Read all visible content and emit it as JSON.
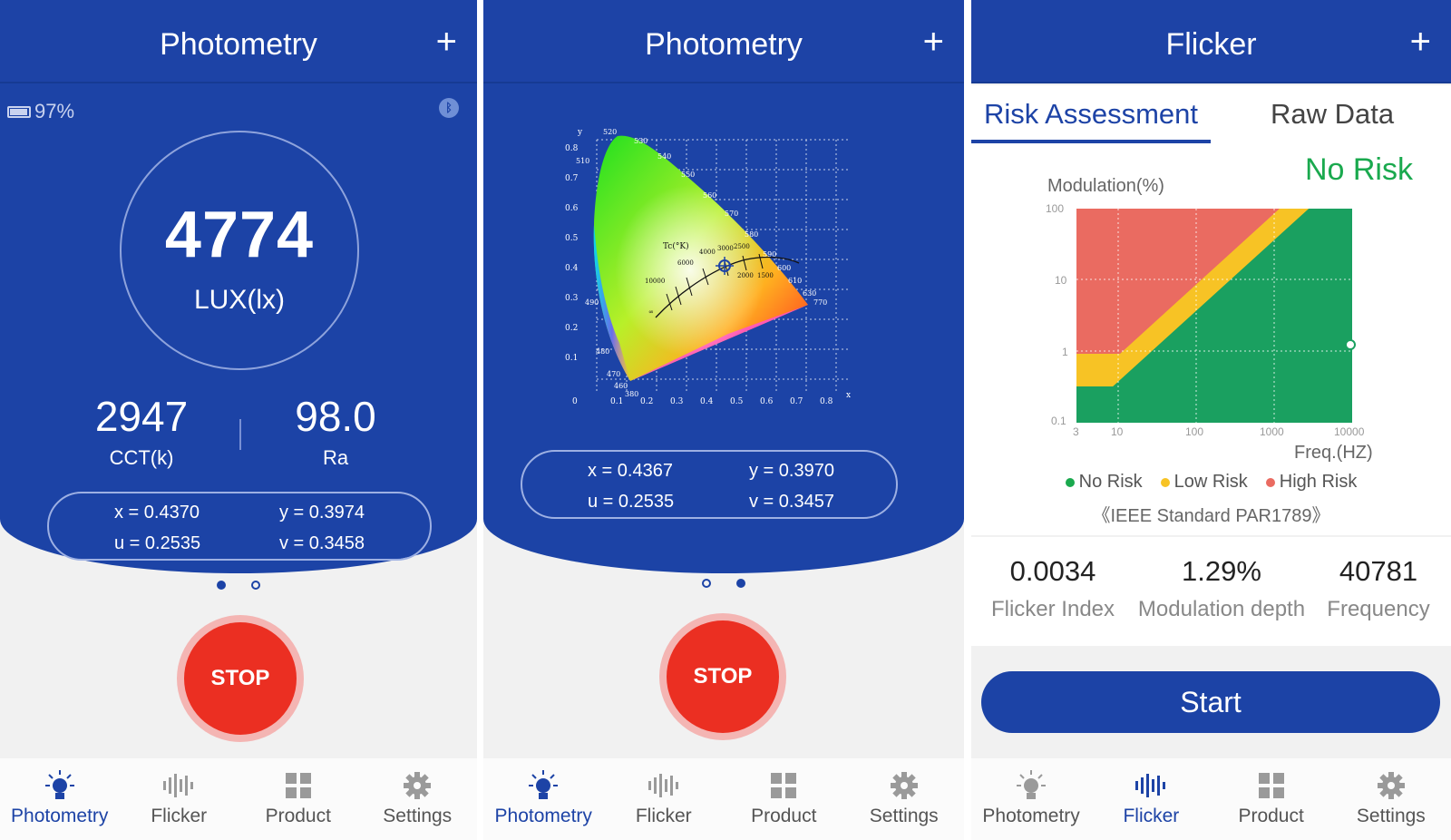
{
  "colors": {
    "primary": "#1d43a6",
    "stop_red": "#eb2f22",
    "no_risk": "#1aa94e",
    "low_risk": "#f7c325",
    "high_risk": "#ea6b61"
  },
  "tabs": [
    "Photometry",
    "Flicker",
    "Product",
    "Settings"
  ],
  "screen1": {
    "title": "Photometry",
    "add_icon": "plus-icon",
    "battery": "97%",
    "lux_value": "4774",
    "lux_unit": "LUX(lx)",
    "cct_value": "2947",
    "cct_label": "CCT(k)",
    "ra_value": "98.0",
    "ra_label": "Ra",
    "coords": {
      "x": "x = 0.4370",
      "y": "y = 0.3974",
      "u": "u = 0.2535",
      "v": "v = 0.3458"
    },
    "stop_label": "STOP",
    "active_tab": "Photometry"
  },
  "screen2": {
    "title": "Photometry",
    "add_icon": "plus-icon",
    "cie": {
      "y_axis": "y",
      "x_axis": "x",
      "y_ticks": [
        "0.8",
        "0.7",
        "0.6",
        "0.5",
        "0.4",
        "0.3",
        "0.2",
        "0.1",
        "0"
      ],
      "x_ticks": [
        "0.1",
        "0.2",
        "0.3",
        "0.4",
        "0.5",
        "0.6",
        "0.7",
        "0.8"
      ],
      "tc_label": "Tc(°K)",
      "wavelengths": [
        "520",
        "530",
        "510",
        "540",
        "550",
        "560",
        "570",
        "580",
        "590",
        "600",
        "610",
        "630",
        "770",
        "490",
        "480",
        "470",
        "460",
        "380"
      ],
      "temps": [
        "4000",
        "3000",
        "2500",
        "6000",
        "10000",
        "2000",
        "1500",
        "∞"
      ]
    },
    "coords": {
      "x": "x = 0.4367",
      "y": "y = 0.3970",
      "u": "u = 0.2535",
      "v": "v = 0.3457"
    },
    "stop_label": "STOP",
    "active_tab": "Photometry"
  },
  "screen3": {
    "title": "Flicker",
    "add_icon": "plus-icon",
    "subtabs": [
      "Risk Assessment",
      "Raw Data"
    ],
    "risk_result": "No Risk",
    "y_label": "Modulation(%)",
    "x_label": "Freq.(HZ)",
    "y_ticks": [
      "100",
      "10",
      "1",
      "0.1"
    ],
    "x_ticks": [
      "3",
      "10",
      "100",
      "1000",
      "10000"
    ],
    "legend": [
      "No Risk",
      "Low Risk",
      "High Risk"
    ],
    "standard": "《IEEE Standard PAR1789》",
    "metrics": [
      {
        "value": "0.0034",
        "label": "Flicker Index"
      },
      {
        "value": "1.29%",
        "label": "Modulation depth"
      },
      {
        "value": "40781",
        "label": "Frequency"
      }
    ],
    "start_label": "Start",
    "active_tab": "Flicker"
  }
}
